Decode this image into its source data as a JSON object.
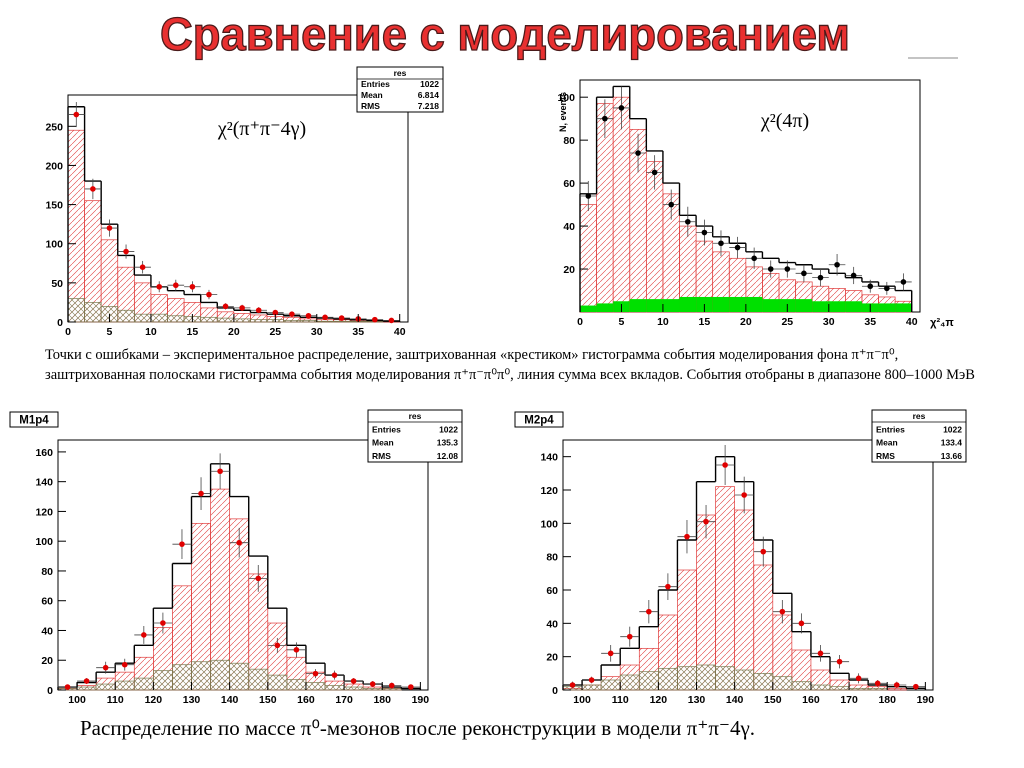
{
  "title": "Сравнение с моделированием",
  "caption": "Точки с ошибками – экспериментальное распределение, заштрихованная «крестиком» гистограмма события моделирования фона π⁺π⁻π⁰, заштрихованная полосками гистограмма события моделирования π⁺π⁻π⁰π⁰, линия сумма всех вкладов. События отобраны в диапазоне 800–1000 МэВ",
  "footer": "Распределение по массе π⁰-мезонов после реконструкции в модели π⁺π⁻4γ.",
  "chart_data": [
    {
      "type": "histogram",
      "annotation": "χ²(π⁺π⁻4γ)",
      "stats": {
        "title": "res",
        "rows": [
          {
            "label": "Entries",
            "value": 1022
          },
          {
            "label": "Mean",
            "value": 6.814
          },
          {
            "label": "RMS",
            "value": 7.218
          }
        ]
      },
      "bins": [
        0,
        2,
        4,
        6,
        8,
        10,
        12,
        14,
        16,
        18,
        20,
        22,
        24,
        26,
        28,
        30,
        32,
        34,
        36,
        38,
        40
      ],
      "xlim": [
        0,
        41
      ],
      "xticks": [
        0,
        5,
        10,
        15,
        20,
        25,
        30,
        35,
        40
      ],
      "ylim": [
        0,
        290
      ],
      "yticks": [
        0,
        50,
        100,
        150,
        200,
        250
      ],
      "series": [
        {
          "style": "hatch",
          "color": "#e03a3a",
          "values": [
            245,
            155,
            105,
            70,
            50,
            35,
            30,
            25,
            18,
            13,
            11,
            9,
            7,
            6,
            4,
            3,
            3,
            2,
            1,
            1
          ]
        },
        {
          "style": "crosshatch",
          "color": "#7a7a50",
          "values": [
            30,
            25,
            20,
            15,
            10,
            10,
            8,
            7,
            6,
            5,
            4,
            3,
            3,
            2,
            2,
            1,
            1,
            1,
            1,
            0
          ]
        },
        {
          "style": "step",
          "color": "#000000",
          "values": [
            275,
            180,
            125,
            85,
            60,
            45,
            40,
            35,
            25,
            18,
            15,
            12,
            10,
            8,
            6,
            5,
            4,
            3,
            2,
            1
          ]
        },
        {
          "style": "points",
          "color": "#e00000",
          "values": [
            265,
            170,
            120,
            90,
            70,
            45,
            47,
            45,
            35,
            20,
            18,
            15,
            12,
            10,
            8,
            6,
            5,
            4,
            3,
            2
          ],
          "errors": [
            16,
            13,
            11,
            9,
            8,
            7,
            7,
            7,
            6,
            4,
            4,
            4,
            3,
            3,
            3,
            2,
            2,
            2,
            2,
            1
          ]
        }
      ]
    },
    {
      "type": "histogram",
      "annotation": "χ²(4π)",
      "xlabel": "χ²₄π",
      "ylabel": "N, events",
      "bins": [
        0,
        2,
        4,
        6,
        8,
        10,
        12,
        14,
        16,
        18,
        20,
        22,
        24,
        26,
        28,
        30,
        32,
        34,
        36,
        38,
        40
      ],
      "xlim": [
        0,
        41
      ],
      "xticks": [
        0,
        5,
        10,
        15,
        20,
        25,
        30,
        35,
        40
      ],
      "ylim": [
        0,
        108
      ],
      "yticks": [
        20,
        40,
        60,
        80,
        100
      ],
      "series": [
        {
          "style": "hatch",
          "color": "#e03a3a",
          "values": [
            50,
            97,
            100,
            85,
            70,
            55,
            40,
            33,
            28,
            25,
            21,
            18,
            15,
            14,
            12,
            11,
            10,
            8,
            7,
            5
          ]
        },
        {
          "style": "solid",
          "color": "#00e000",
          "values": [
            3,
            4,
            5,
            6,
            6,
            6,
            7,
            7,
            7,
            7,
            7,
            6,
            6,
            6,
            5,
            5,
            5,
            4,
            4,
            4
          ]
        },
        {
          "style": "step",
          "color": "#000000",
          "values": [
            55,
            100,
            105,
            90,
            75,
            60,
            45,
            40,
            35,
            32,
            28,
            25,
            23,
            22,
            20,
            18,
            16,
            14,
            12,
            10
          ]
        },
        {
          "style": "points",
          "color": "#000000",
          "values": [
            54,
            90,
            95,
            74,
            65,
            50,
            42,
            37,
            32,
            30,
            25,
            20,
            20,
            18,
            16,
            22,
            17,
            12,
            11,
            14
          ],
          "errors": [
            7,
            9,
            10,
            9,
            8,
            7,
            7,
            6,
            6,
            5,
            5,
            4,
            4,
            4,
            4,
            5,
            4,
            3,
            3,
            4
          ]
        }
      ]
    },
    {
      "type": "histogram",
      "label": "M1p4",
      "stats": {
        "title": "res",
        "rows": [
          {
            "label": "Entries",
            "value": 1022
          },
          {
            "label": "Mean",
            "value": 135.3
          },
          {
            "label": "RMS",
            "value": 12.08
          }
        ]
      },
      "bins": [
        95,
        100,
        105,
        110,
        115,
        120,
        125,
        130,
        135,
        140,
        145,
        150,
        155,
        160,
        165,
        170,
        175,
        180,
        185,
        190
      ],
      "xlim": [
        95,
        192
      ],
      "xticks": [
        100,
        110,
        120,
        130,
        140,
        150,
        160,
        170,
        180,
        190
      ],
      "ylim": [
        0,
        168
      ],
      "yticks": [
        0,
        20,
        40,
        60,
        80,
        100,
        120,
        140,
        160
      ],
      "series": [
        {
          "style": "hatch",
          "color": "#e03a3a",
          "values": [
            1,
            3,
            8,
            12,
            22,
            42,
            70,
            112,
            135,
            115,
            78,
            45,
            22,
            12,
            6,
            4,
            2,
            1,
            0
          ]
        },
        {
          "style": "crosshatch",
          "color": "#7a7a50",
          "values": [
            1,
            2,
            4,
            6,
            8,
            13,
            17,
            19,
            20,
            18,
            14,
            10,
            7,
            5,
            3,
            2,
            1,
            1,
            0
          ]
        },
        {
          "style": "step",
          "color": "#000000",
          "values": [
            2,
            5,
            12,
            18,
            30,
            55,
            85,
            130,
            152,
            130,
            90,
            55,
            30,
            18,
            10,
            6,
            4,
            2,
            1
          ]
        },
        {
          "style": "points",
          "color": "#e00000",
          "values": [
            2,
            6,
            15,
            17,
            37,
            45,
            98,
            132,
            147,
            99,
            75,
            30,
            27,
            11,
            10,
            6,
            4,
            3,
            2
          ],
          "errors": [
            1,
            2,
            4,
            4,
            6,
            7,
            10,
            11,
            12,
            10,
            9,
            5,
            5,
            3,
            3,
            2,
            2,
            2,
            1
          ]
        }
      ]
    },
    {
      "type": "histogram",
      "label": "M2p4",
      "stats": {
        "title": "res",
        "rows": [
          {
            "label": "Entries",
            "value": 1022
          },
          {
            "label": "Mean",
            "value": 133.4
          },
          {
            "label": "RMS",
            "value": 13.66
          }
        ]
      },
      "bins": [
        95,
        100,
        105,
        110,
        115,
        120,
        125,
        130,
        135,
        140,
        145,
        150,
        155,
        160,
        165,
        170,
        175,
        180,
        185,
        190
      ],
      "xlim": [
        95,
        192
      ],
      "xticks": [
        100,
        110,
        120,
        130,
        140,
        150,
        160,
        170,
        180,
        190
      ],
      "ylim": [
        0,
        150
      ],
      "yticks": [
        0,
        20,
        40,
        60,
        80,
        100,
        120,
        140
      ],
      "series": [
        {
          "style": "hatch",
          "color": "#e03a3a",
          "values": [
            1,
            3,
            8,
            15,
            25,
            45,
            72,
            105,
            122,
            108,
            75,
            45,
            24,
            12,
            6,
            3,
            2,
            1,
            0
          ]
        },
        {
          "style": "crosshatch",
          "color": "#7a7a50",
          "values": [
            2,
            3,
            6,
            9,
            11,
            13,
            14,
            15,
            14,
            12,
            10,
            8,
            5,
            3,
            2,
            1,
            1,
            0,
            0
          ]
        },
        {
          "style": "step",
          "color": "#000000",
          "values": [
            3,
            6,
            15,
            25,
            38,
            60,
            90,
            125,
            140,
            125,
            90,
            58,
            35,
            20,
            10,
            6,
            3,
            2,
            1
          ]
        },
        {
          "style": "points",
          "color": "#e00000",
          "values": [
            3,
            6,
            22,
            32,
            47,
            62,
            92,
            101,
            135,
            117,
            83,
            47,
            40,
            22,
            17,
            7,
            4,
            3,
            2
          ],
          "errors": [
            2,
            2,
            5,
            6,
            7,
            8,
            10,
            10,
            12,
            11,
            9,
            7,
            6,
            5,
            4,
            3,
            2,
            2,
            1
          ]
        }
      ]
    }
  ]
}
